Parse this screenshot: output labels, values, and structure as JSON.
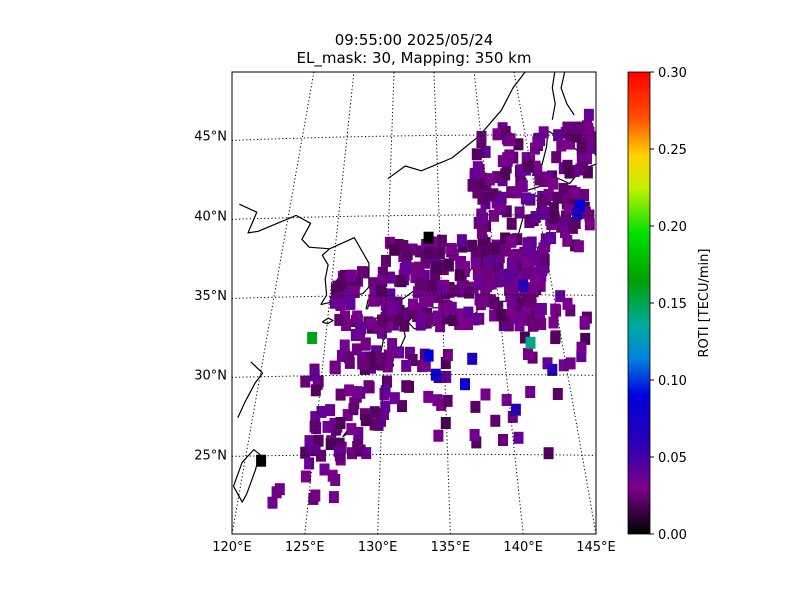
{
  "chart_data": {
    "type": "heatmap",
    "title": "09:55:00 2025/05/24",
    "subtitle": "EL_mask: 30, Mapping: 350 km",
    "lon_range": [
      120,
      145
    ],
    "lat_range": [
      20,
      49
    ],
    "x_ticks": [
      {
        "value": 120,
        "label": "120°E"
      },
      {
        "value": 125,
        "label": "125°E"
      },
      {
        "value": 130,
        "label": "130°E"
      },
      {
        "value": 135,
        "label": "135°E"
      },
      {
        "value": 140,
        "label": "140°E"
      },
      {
        "value": 145,
        "label": "145°E"
      }
    ],
    "y_ticks": [
      {
        "value": 25,
        "label": "25°N"
      },
      {
        "value": 30,
        "label": "30°N"
      },
      {
        "value": 35,
        "label": "35°N"
      },
      {
        "value": 40,
        "label": "40°N"
      },
      {
        "value": 45,
        "label": "45°N"
      }
    ],
    "colorbar": {
      "label": "ROTI [TECU/min]",
      "range": [
        0.0,
        0.3
      ],
      "ticks": [
        "0.00",
        "0.05",
        "0.10",
        "0.15",
        "0.20",
        "0.25",
        "0.30"
      ],
      "colormap": "nipy_spectral"
    },
    "grid": "dotted",
    "highlights": [
      {
        "lon": 125.5,
        "lat": 32.3,
        "value": 0.16
      },
      {
        "lon": 140.5,
        "lat": 32.0,
        "value": 0.14
      },
      {
        "lon": 133.5,
        "lat": 31.2,
        "value": 0.09
      },
      {
        "lon": 134.0,
        "lat": 30.0,
        "value": 0.08
      },
      {
        "lon": 136.0,
        "lat": 29.4,
        "value": 0.08
      },
      {
        "lon": 143.9,
        "lat": 40.6,
        "value": 0.09
      },
      {
        "lon": 143.7,
        "lat": 40.1,
        "value": 0.07
      },
      {
        "lon": 136.5,
        "lat": 31.0,
        "value": 0.07
      },
      {
        "lon": 139.5,
        "lat": 27.8,
        "value": 0.06
      },
      {
        "lon": 142.0,
        "lat": 30.3,
        "value": 0.06
      },
      {
        "lon": 140.0,
        "lat": 35.6,
        "value": 0.06
      },
      {
        "lon": 133.5,
        "lat": 38.6,
        "value": 0.0
      },
      {
        "lon": 122.0,
        "lat": 24.6,
        "value": 0.0
      }
    ]
  }
}
